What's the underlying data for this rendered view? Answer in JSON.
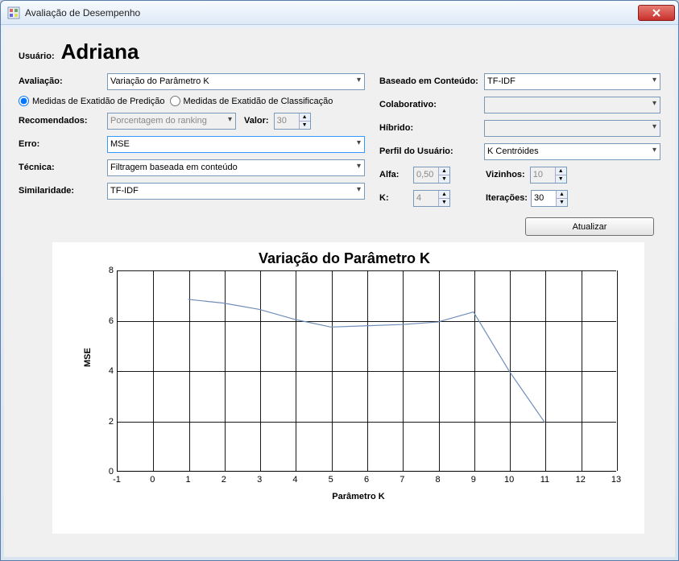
{
  "window": {
    "title": "Avaliação de Desempenho"
  },
  "user": {
    "label": "Usuário:",
    "name": "Adriana"
  },
  "left": {
    "avaliacao": {
      "label": "Avaliação:",
      "value": "Variação do Parâmetro K"
    },
    "radio1": "Medidas de Exatidão de Predição",
    "radio2": "Medidas de Exatidão de Classificação",
    "radio_selected": 1,
    "recomendados": {
      "label": "Recomendados:",
      "value": "Porcentagem do ranking",
      "disabled": true
    },
    "valor": {
      "label": "Valor:",
      "value": "30",
      "disabled": true
    },
    "erro": {
      "label": "Erro:",
      "value": "MSE"
    },
    "tecnica": {
      "label": "Técnica:",
      "value": "Filtragem baseada em conteúdo"
    },
    "similaridade": {
      "label": "Similaridade:",
      "value": "TF-IDF"
    }
  },
  "right": {
    "baseado": {
      "label": "Baseado em Conteúdo:",
      "value": "TF-IDF"
    },
    "colaborativo": {
      "label": "Colaborativo:",
      "value": "",
      "disabled": true
    },
    "hibrido": {
      "label": "Híbrido:",
      "value": "",
      "disabled": true
    },
    "perfil": {
      "label": "Perfil do Usuário:",
      "value": "K Centróides"
    },
    "alfa": {
      "label": "Alfa:",
      "value": "0,50",
      "disabled": true
    },
    "vizinhos": {
      "label": "Vizinhos:",
      "value": "10",
      "disabled": true
    },
    "k": {
      "label": "K:",
      "value": "4",
      "disabled": true
    },
    "iteracoes": {
      "label": "Iterações:",
      "value": "30"
    }
  },
  "buttons": {
    "atualizar": "Atualizar"
  },
  "chart": {
    "type": "line",
    "title": "Variação do Parâmetro K",
    "xlabel": "Parâmetro K",
    "ylabel": "MSE",
    "xlim": [
      -1,
      13
    ],
    "ylim": [
      0,
      8
    ],
    "xticks": [
      -1,
      0,
      1,
      2,
      3,
      4,
      5,
      6,
      7,
      8,
      9,
      10,
      11,
      12,
      13
    ],
    "yticks": [
      0,
      2,
      4,
      6,
      8
    ],
    "grid_x": [
      0,
      1,
      2,
      3,
      4,
      5,
      6,
      7,
      8,
      9,
      10,
      11,
      12,
      13
    ],
    "grid_y": [
      2,
      4,
      6,
      8
    ],
    "line_color": "#6f8db8",
    "line_width": 1.2,
    "grid_color": "#000000",
    "background_color": "#ffffff",
    "series": {
      "x": [
        1,
        2,
        3,
        4,
        5,
        6,
        7,
        8,
        9,
        10,
        11
      ],
      "y": [
        6.85,
        6.7,
        6.45,
        6.05,
        5.75,
        5.8,
        5.85,
        5.95,
        6.35,
        4.0,
        1.95
      ]
    }
  }
}
